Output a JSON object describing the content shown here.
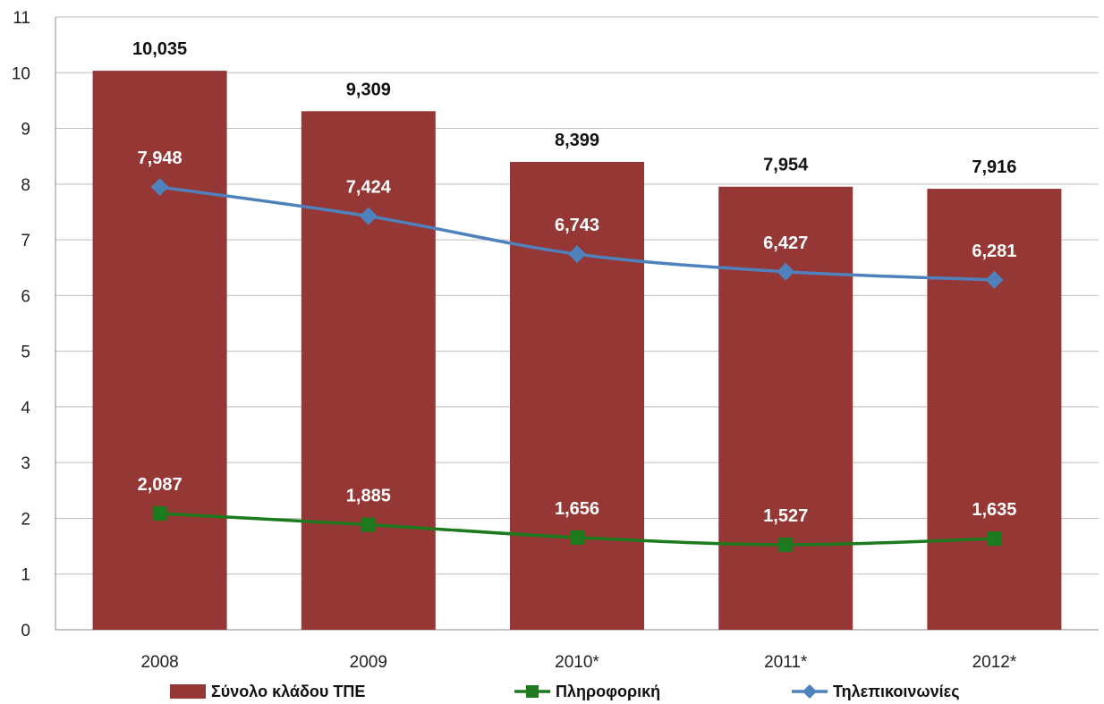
{
  "chart_data": {
    "type": "bar",
    "categories": [
      "2008",
      "2009",
      "2010*",
      "2011*",
      "2012*"
    ],
    "ylim": [
      0,
      11
    ],
    "yticks": [
      0,
      1,
      2,
      3,
      4,
      5,
      6,
      7,
      8,
      9,
      10,
      11
    ],
    "grid": true,
    "legend_position": "bottom",
    "series": [
      {
        "name": "Σύνολο κλάδου ΤΠΕ",
        "type": "bar",
        "color": "#953735",
        "values": [
          10.035,
          9.309,
          8.399,
          7.954,
          7.916
        ],
        "labels": [
          "10,035",
          "9,309",
          "8,399",
          "7,954",
          "7,916"
        ]
      },
      {
        "name": "Πληροφορική",
        "type": "line",
        "marker": "square",
        "color": "#1e7a1e",
        "values": [
          2.087,
          1.885,
          1.656,
          1.527,
          1.635
        ],
        "labels": [
          "2,087",
          "1,885",
          "1,656",
          "1,527",
          "1,635"
        ]
      },
      {
        "name": "Τηλεπικοινωνίες",
        "type": "line",
        "marker": "diamond",
        "color": "#4f81bd",
        "values": [
          7.948,
          7.424,
          6.743,
          6.427,
          6.281
        ],
        "labels": [
          "7,948",
          "7,424",
          "6,743",
          "6,427",
          "6,281"
        ]
      }
    ]
  }
}
